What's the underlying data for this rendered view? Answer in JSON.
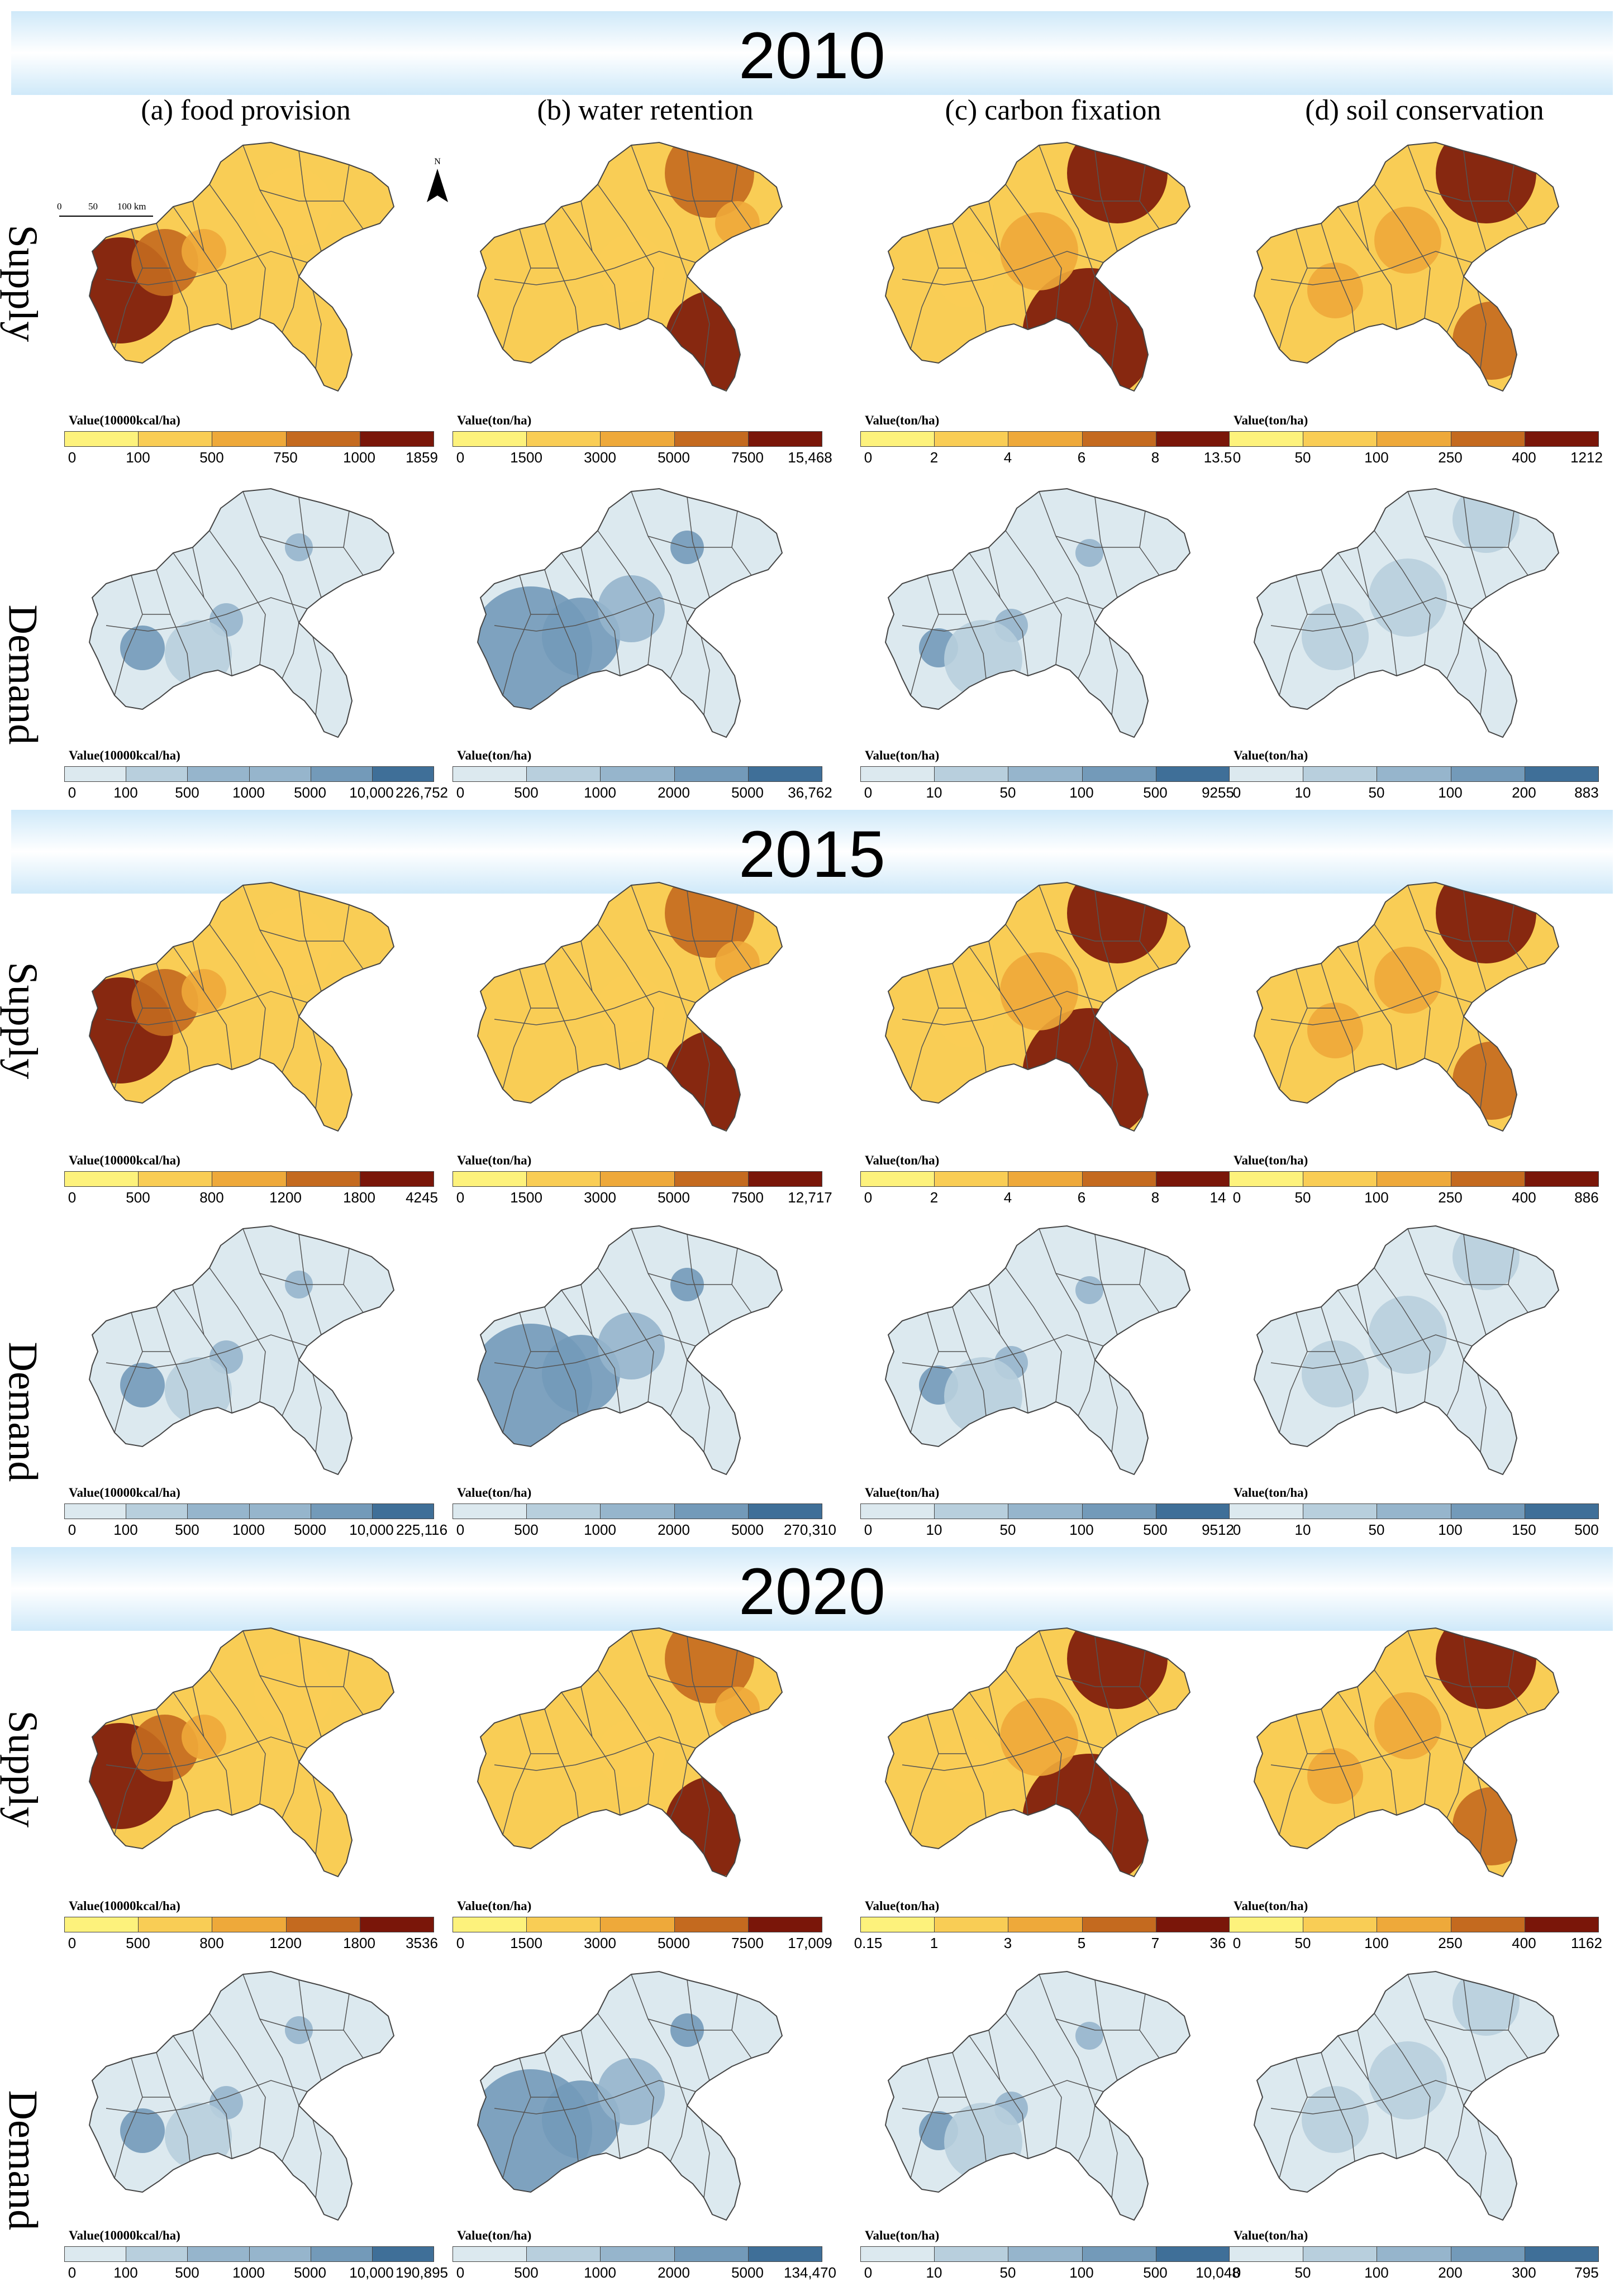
{
  "years": [
    "2010",
    "2015",
    "2020"
  ],
  "column_titles": [
    "(a) food provision",
    "(b) water retention",
    "(c) carbon fixation",
    "(d) soil conservation"
  ],
  "row_labels": {
    "supply": "Supply",
    "demand": "Demand"
  },
  "scale_bar": {
    "ticks": [
      "0",
      "50",
      "100 km"
    ]
  },
  "north_arrow": {
    "label": "N"
  },
  "colors": {
    "supply_ramp": [
      "#fdf27c",
      "#f9cd55",
      "#eea93a",
      "#c46a1f",
      "#7a1609"
    ],
    "demand_ramp": [
      "#dce9ef",
      "#b8cfdd",
      "#96b5cc",
      "#739ab9",
      "#3f6f98"
    ],
    "year_band": "#cfe9f9"
  },
  "legends": {
    "2010": {
      "supply": [
        {
          "title": "Value(10000kcal/ha)",
          "ticks": [
            "0",
            "100",
            "500",
            "750",
            "1000",
            "1859"
          ]
        },
        {
          "title": "Value(ton/ha)",
          "ticks": [
            "0",
            "1500",
            "3000",
            "5000",
            "7500",
            "15,468"
          ]
        },
        {
          "title": "Value(ton/ha)",
          "ticks": [
            "0",
            "2",
            "4",
            "6",
            "8",
            "13.5"
          ]
        },
        {
          "title": "Value(ton/ha)",
          "ticks": [
            "0",
            "50",
            "100",
            "250",
            "400",
            "1212"
          ]
        }
      ],
      "demand": [
        {
          "title": "Value(10000kcal/ha)",
          "ticks": [
            "0",
            "100",
            "500",
            "1000",
            "5000",
            "10,000",
            "226,752"
          ]
        },
        {
          "title": "Value(ton/ha)",
          "ticks": [
            "0",
            "500",
            "1000",
            "2000",
            "5000",
            "36,762"
          ]
        },
        {
          "title": "Value(ton/ha)",
          "ticks": [
            "0",
            "10",
            "50",
            "100",
            "500",
            "9255"
          ]
        },
        {
          "title": "Value(ton/ha)",
          "ticks": [
            "0",
            "10",
            "50",
            "100",
            "200",
            "883"
          ]
        }
      ]
    },
    "2015": {
      "supply": [
        {
          "title": "Value(10000kcal/ha)",
          "ticks": [
            "0",
            "500",
            "800",
            "1200",
            "1800",
            "4245"
          ]
        },
        {
          "title": "Value(ton/ha)",
          "ticks": [
            "0",
            "1500",
            "3000",
            "5000",
            "7500",
            "12,717"
          ]
        },
        {
          "title": "Value(ton/ha)",
          "ticks": [
            "0",
            "2",
            "4",
            "6",
            "8",
            "14"
          ]
        },
        {
          "title": "Value(ton/ha)",
          "ticks": [
            "0",
            "50",
            "100",
            "250",
            "400",
            "886"
          ]
        }
      ],
      "demand": [
        {
          "title": "Value(10000kcal/ha)",
          "ticks": [
            "0",
            "100",
            "500",
            "1000",
            "5000",
            "10,000",
            "225,116"
          ]
        },
        {
          "title": "Value(ton/ha)",
          "ticks": [
            "0",
            "500",
            "1000",
            "2000",
            "5000",
            "270,310"
          ]
        },
        {
          "title": "Value(ton/ha)",
          "ticks": [
            "0",
            "10",
            "50",
            "100",
            "500",
            "9512"
          ]
        },
        {
          "title": "Value(ton/ha)",
          "ticks": [
            "0",
            "10",
            "50",
            "100",
            "150",
            "500"
          ]
        }
      ]
    },
    "2020": {
      "supply": [
        {
          "title": "Value(10000kcal/ha)",
          "ticks": [
            "0",
            "500",
            "800",
            "1200",
            "1800",
            "3536"
          ]
        },
        {
          "title": "Value(ton/ha)",
          "ticks": [
            "0",
            "1500",
            "3000",
            "5000",
            "7500",
            "17,009"
          ]
        },
        {
          "title": "Value(ton/ha)",
          "ticks": [
            "0.15",
            "1",
            "3",
            "5",
            "7",
            "36"
          ]
        },
        {
          "title": "Value(ton/ha)",
          "ticks": [
            "0",
            "50",
            "100",
            "250",
            "400",
            "1162"
          ]
        }
      ],
      "demand": [
        {
          "title": "Value(10000kcal/ha)",
          "ticks": [
            "0",
            "100",
            "500",
            "1000",
            "5000",
            "10,000",
            "190,895"
          ]
        },
        {
          "title": "Value(ton/ha)",
          "ticks": [
            "0",
            "500",
            "1000",
            "2000",
            "5000",
            "134,470"
          ]
        },
        {
          "title": "Value(ton/ha)",
          "ticks": [
            "0",
            "10",
            "50",
            "100",
            "500",
            "10,048"
          ]
        },
        {
          "title": "Value(ton/ha)",
          "ticks": [
            "0",
            "50",
            "100",
            "200",
            "300",
            "795"
          ]
        }
      ]
    }
  }
}
